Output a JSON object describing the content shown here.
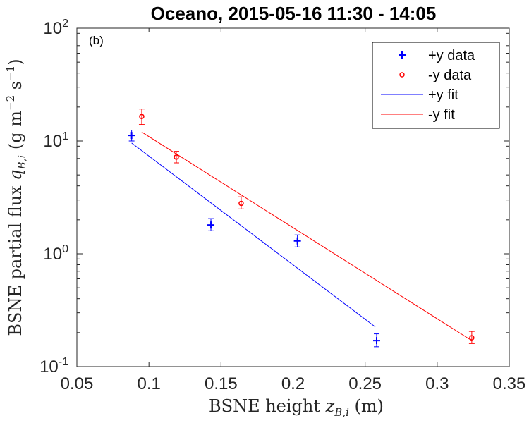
{
  "chart_data": {
    "type": "scatter",
    "title": "Oceano, 2015-05-16 11:30 - 14:05",
    "panel_label": "(b)",
    "xlabel_prefix": "BSNE height ",
    "xlabel_var": "z",
    "xlabel_sub": "B,i",
    "xlabel_unit": " (m)",
    "ylabel_prefix": "BSNE partial flux ",
    "ylabel_var": "q",
    "ylabel_sub": "B,i",
    "ylabel_unit_open": " (g m",
    "ylabel_unit_exp1": "−2",
    "ylabel_unit_mid": " s",
    "ylabel_unit_exp2": "−1",
    "ylabel_unit_close": ")",
    "xlim": [
      0.05,
      0.35
    ],
    "ylim": [
      0.1,
      100
    ],
    "yscale": "log",
    "xticks": [
      0.05,
      0.1,
      0.15,
      0.2,
      0.25,
      0.3,
      0.35
    ],
    "xtick_labels": [
      "0.05",
      "0.1",
      "0.15",
      "0.2",
      "0.25",
      "0.3",
      "0.35"
    ],
    "yticks": [
      {
        "value": 0.1,
        "base": "10",
        "exp": "-1"
      },
      {
        "value": 1,
        "base": "10",
        "exp": "0"
      },
      {
        "value": 10,
        "base": "10",
        "exp": "1"
      },
      {
        "value": 100,
        "base": "10",
        "exp": "2"
      }
    ],
    "legend_position": "top-right",
    "legend": [
      "+y data",
      "-y data",
      "+y fit",
      "-y fit"
    ],
    "series": [
      {
        "name": "+y data",
        "kind": "points",
        "marker": "plus",
        "color": "#0000ff",
        "x": [
          0.088,
          0.143,
          0.203,
          0.258
        ],
        "y": [
          11.2,
          1.8,
          1.3,
          0.17
        ],
        "y_err_low": [
          10.0,
          1.6,
          1.15,
          0.15
        ],
        "y_err_high": [
          12.5,
          2.05,
          1.47,
          0.195
        ]
      },
      {
        "name": "-y data",
        "kind": "points",
        "marker": "circle",
        "color": "#ff0000",
        "x": [
          0.095,
          0.119,
          0.164,
          0.324
        ],
        "y": [
          16.5,
          7.2,
          2.8,
          0.18
        ],
        "y_err_low": [
          14.0,
          6.4,
          2.5,
          0.16
        ],
        "y_err_high": [
          19.2,
          8.1,
          3.2,
          0.205
        ]
      },
      {
        "name": "+y fit",
        "kind": "line",
        "color": "#0000ff",
        "x": [
          0.088,
          0.257
        ],
        "y": [
          9.6,
          0.225
        ]
      },
      {
        "name": "-y fit",
        "kind": "line",
        "color": "#ff0000",
        "x": [
          0.095,
          0.324
        ],
        "y": [
          12.0,
          0.17
        ]
      }
    ]
  }
}
